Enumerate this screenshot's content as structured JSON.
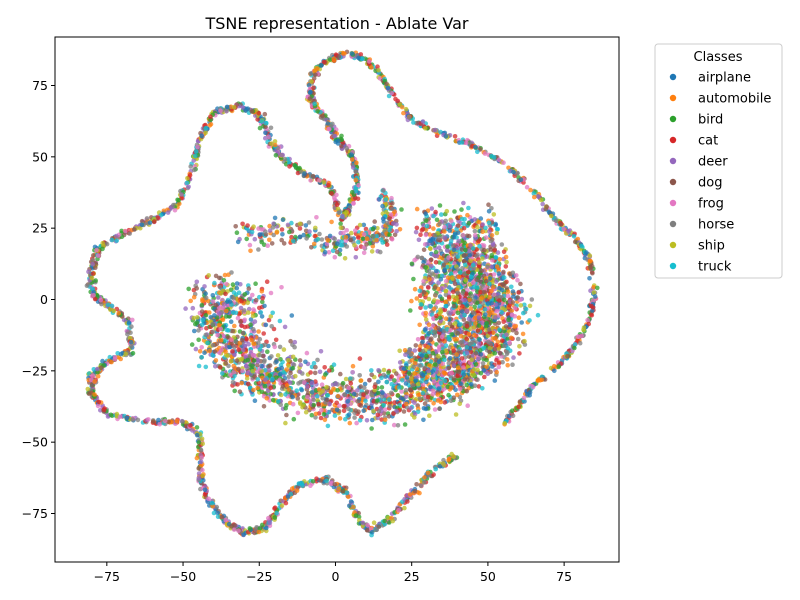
{
  "chart_data": {
    "type": "scatter",
    "title": "TSNE representation - Ablate Var",
    "xlabel": "",
    "ylabel": "",
    "xlim": [
      -92,
      93
    ],
    "ylim": [
      -92,
      92
    ],
    "xticks": [
      -75,
      -50,
      -25,
      0,
      25,
      50,
      75
    ],
    "yticks": [
      -75,
      -50,
      -25,
      0,
      25,
      50,
      75
    ],
    "grid": false,
    "legend": {
      "title": "Classes",
      "placement": "outside-right-top",
      "entries": [
        "airplane",
        "automobile",
        "bird",
        "cat",
        "deer",
        "dog",
        "frog",
        "horse",
        "ship",
        "truck"
      ]
    },
    "colors": {
      "airplane": "#1f77b4",
      "automobile": "#ff7f0e",
      "bird": "#2ca02c",
      "cat": "#d62728",
      "deer": "#9467bd",
      "dog": "#8c564b",
      "frog": "#e377c2",
      "horse": "#7f7f7f",
      "ship": "#bcbd22",
      "truck": "#17becf"
    },
    "structure": {
      "left_loop_path": [
        [
          4,
          86
        ],
        [
          -3,
          84
        ],
        [
          -8,
          78
        ],
        [
          -8,
          70
        ],
        [
          -3,
          63
        ],
        [
          0,
          57
        ],
        [
          5,
          52
        ],
        [
          7,
          45
        ],
        [
          7,
          38
        ],
        [
          4,
          31
        ],
        [
          2,
          28
        ],
        [
          -2,
          40
        ],
        [
          -10,
          44
        ],
        [
          -18,
          50
        ],
        [
          -22,
          57
        ],
        [
          -25,
          65
        ],
        [
          -32,
          68
        ],
        [
          -40,
          65
        ],
        [
          -45,
          55
        ],
        [
          -47,
          45
        ],
        [
          -52,
          33
        ],
        [
          -60,
          28
        ],
        [
          -70,
          23
        ],
        [
          -78,
          18
        ],
        [
          -80,
          10
        ],
        [
          -80,
          2
        ],
        [
          -75,
          -2
        ],
        [
          -68,
          -7
        ],
        [
          -67,
          -18
        ],
        [
          -75,
          -22
        ],
        [
          -80,
          -27
        ],
        [
          -80,
          -33
        ],
        [
          -75,
          -40
        ],
        [
          -62,
          -43
        ],
        [
          -50,
          -43
        ],
        [
          -44,
          -48
        ],
        [
          -45,
          -60
        ],
        [
          -42,
          -70
        ],
        [
          -36,
          -78
        ],
        [
          -30,
          -82
        ],
        [
          -23,
          -80
        ],
        [
          -18,
          -72
        ],
        [
          -12,
          -65
        ],
        [
          -3,
          -63
        ],
        [
          3,
          -67
        ],
        [
          8,
          -78
        ],
        [
          12,
          -81
        ],
        [
          18,
          -77
        ],
        [
          25,
          -68
        ],
        [
          32,
          -60
        ],
        [
          39,
          -55
        ]
      ],
      "right_arc_path": [
        [
          5,
          86
        ],
        [
          10,
          84
        ],
        [
          15,
          78
        ],
        [
          20,
          70
        ],
        [
          25,
          63
        ],
        [
          35,
          58
        ],
        [
          45,
          54
        ],
        [
          55,
          48
        ],
        [
          65,
          38
        ],
        [
          72,
          28
        ],
        [
          78,
          22
        ],
        [
          83,
          15
        ],
        [
          85,
          2
        ],
        [
          83,
          -8
        ],
        [
          78,
          -17
        ],
        [
          73,
          -23
        ],
        [
          65,
          -30
        ],
        [
          60,
          -37
        ],
        [
          55,
          -44
        ]
      ],
      "central_blob": {
        "top_arc": [
          [
            -30,
            23
          ],
          [
            -15,
            24
          ],
          [
            0,
            20
          ],
          [
            10,
            22
          ],
          [
            16,
            22
          ]
        ],
        "column": [
          [
            15,
            38
          ],
          [
            18,
            30
          ],
          [
            16,
            22
          ]
        ],
        "center_x": 8,
        "center_y": -5,
        "radius_x": 52,
        "radius_y": 35
      }
    }
  }
}
